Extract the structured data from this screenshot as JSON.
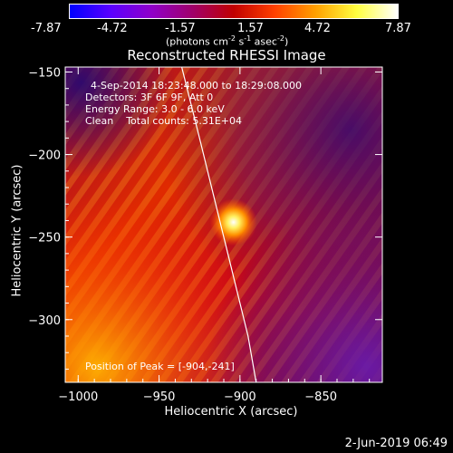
{
  "colorbar": {
    "tick_labels": [
      "-7.87",
      "-4.72",
      "-1.57",
      "1.57",
      "4.72",
      "7.87"
    ],
    "ticks": [
      -7.87,
      -4.72,
      -1.57,
      1.57,
      4.72,
      7.87
    ],
    "min": -7.87,
    "max": 7.87,
    "units_prefix": "(photons cm",
    "units_exp1": "-2",
    "units_mid": " s",
    "units_exp2": "-1",
    "units_mid2": " asec",
    "units_exp3": "-2",
    "units_suffix": ")",
    "colors": [
      "#0000ff",
      "#5a00ff",
      "#9000c8",
      "#a0006a",
      "#c00000",
      "#ff4000",
      "#ffa000",
      "#ffff40",
      "#ffffff"
    ]
  },
  "chart": {
    "title": "Reconstructed RHESSI Image",
    "xlabel": "Heliocentric X (arcsec)",
    "ylabel": "Heliocentric Y (arcsec)",
    "info_lines": [
      "4-Sep-2014 18:23:48.000 to 18:29:08.000",
      "Detectors: 3F 6F 9F, Att 0",
      "Energy Range: 3.0 - 6.0 keV",
      "Clean    Total counts: 5.31E+04"
    ],
    "peak_label": "Position of Peak = [-904,-241]",
    "footer_date": "2-Jun-2019 06:49"
  },
  "chart_data": {
    "type": "heatmap",
    "title": "Reconstructed RHESSI Image",
    "xlabel": "Heliocentric X (arcsec)",
    "ylabel": "Heliocentric Y (arcsec)",
    "xlim": [
      -1008,
      -812
    ],
    "ylim": [
      -338,
      -147
    ],
    "x_ticks": [
      -1000,
      -950,
      -900,
      -850
    ],
    "x_tick_labels": [
      "−1000",
      "−950",
      "−900",
      "−850"
    ],
    "y_ticks": [
      -150,
      -200,
      -250,
      -300
    ],
    "y_tick_labels": [
      "−150",
      "−200",
      "−250",
      "−300"
    ],
    "peak": [
      -904,
      -241
    ],
    "limb_curve": [
      [
        -936,
        -147
      ],
      [
        -925,
        -190
      ],
      [
        -915,
        -230
      ],
      [
        -905,
        -270
      ],
      [
        -895,
        -310
      ],
      [
        -890,
        -338
      ]
    ]
  }
}
